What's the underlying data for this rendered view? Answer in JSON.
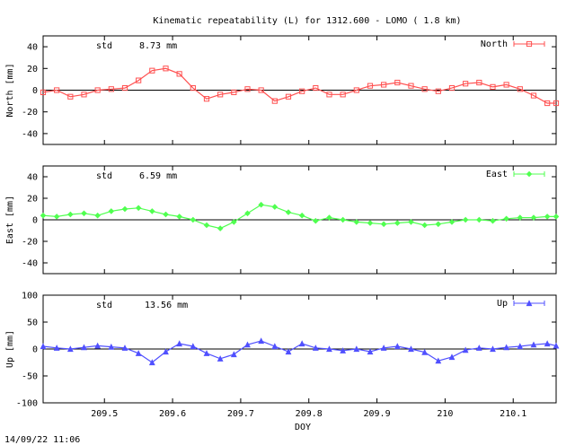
{
  "title": "Kinematic repeatability (L) for 1312.600 - LOMO  (  1.8 km)",
  "timestamp": "14/09/22 11:06",
  "xlabel": "DOY",
  "x_ticks": [
    "209.5",
    "209.6",
    "209.7",
    "209.8",
    "209.9",
    "210",
    "210.1"
  ],
  "x_range": [
    209.41,
    210.163
  ],
  "chart_data": [
    {
      "type": "scatter",
      "name": "North",
      "legend": "North",
      "ylabel": "North [mm]",
      "std_label": "std",
      "std_value": "8.73 mm",
      "color": "#ff5050",
      "marker": "square",
      "ylim": [
        -50,
        50
      ],
      "yticks": [
        -40,
        -20,
        0,
        20,
        40
      ],
      "x": [
        209.41,
        209.43,
        209.45,
        209.47,
        209.49,
        209.51,
        209.53,
        209.55,
        209.57,
        209.59,
        209.61,
        209.63,
        209.65,
        209.67,
        209.69,
        209.71,
        209.73,
        209.75,
        209.77,
        209.79,
        209.81,
        209.83,
        209.85,
        209.87,
        209.89,
        209.91,
        209.93,
        209.95,
        209.97,
        209.99,
        210.01,
        210.03,
        210.05,
        210.07,
        210.09,
        210.11,
        210.13,
        210.15,
        210.163
      ],
      "y": [
        -2,
        0,
        -6,
        -4,
        0,
        1,
        2,
        9,
        18,
        20,
        15,
        2,
        -8,
        -4,
        -2,
        1,
        0,
        -10,
        -6,
        -1,
        2,
        -4,
        -4,
        0,
        4,
        5,
        7,
        4,
        1,
        -1,
        2,
        6,
        7,
        3,
        5,
        1,
        -5,
        -12,
        -12
      ]
    },
    {
      "type": "scatter",
      "name": "East",
      "legend": "East",
      "ylabel": "East [mm]",
      "std_label": "std",
      "std_value": "6.59 mm",
      "color": "#50ff50",
      "marker": "diamond",
      "ylim": [
        -50,
        50
      ],
      "yticks": [
        -40,
        -20,
        0,
        20,
        40
      ],
      "x": [
        209.41,
        209.43,
        209.45,
        209.47,
        209.49,
        209.51,
        209.53,
        209.55,
        209.57,
        209.59,
        209.61,
        209.63,
        209.65,
        209.67,
        209.69,
        209.71,
        209.73,
        209.75,
        209.77,
        209.79,
        209.81,
        209.83,
        209.85,
        209.87,
        209.89,
        209.91,
        209.93,
        209.95,
        209.97,
        209.99,
        210.01,
        210.03,
        210.05,
        210.07,
        210.09,
        210.11,
        210.13,
        210.15,
        210.163
      ],
      "y": [
        4,
        3,
        5,
        6,
        4,
        8,
        10,
        11,
        8,
        5,
        3,
        0,
        -5,
        -8,
        -2,
        6,
        14,
        12,
        7,
        4,
        -1,
        2,
        0,
        -2,
        -3,
        -4,
        -3,
        -2,
        -5,
        -4,
        -2,
        0,
        0,
        -1,
        1,
        2,
        2,
        3,
        3
      ]
    },
    {
      "type": "scatter",
      "name": "Up",
      "legend": "Up",
      "ylabel": "Up [mm]",
      "std_label": "std",
      "std_value": "13.56 mm",
      "color": "#5050ff",
      "marker": "triangle",
      "ylim": [
        -100,
        100
      ],
      "yticks": [
        -100,
        -50,
        0,
        50,
        100
      ],
      "x": [
        209.41,
        209.43,
        209.45,
        209.47,
        209.49,
        209.51,
        209.53,
        209.55,
        209.57,
        209.59,
        209.61,
        209.63,
        209.65,
        209.67,
        209.69,
        209.71,
        209.73,
        209.75,
        209.77,
        209.79,
        209.81,
        209.83,
        209.85,
        209.87,
        209.89,
        209.91,
        209.93,
        209.95,
        209.97,
        209.99,
        210.01,
        210.03,
        210.05,
        210.07,
        210.09,
        210.11,
        210.13,
        210.15,
        210.163
      ],
      "y": [
        5,
        2,
        0,
        3,
        6,
        4,
        2,
        -8,
        -25,
        -5,
        10,
        5,
        -8,
        -18,
        -10,
        8,
        15,
        5,
        -5,
        10,
        2,
        0,
        -3,
        0,
        -5,
        2,
        5,
        0,
        -6,
        -22,
        -15,
        -2,
        2,
        0,
        3,
        5,
        8,
        10,
        6
      ]
    }
  ]
}
